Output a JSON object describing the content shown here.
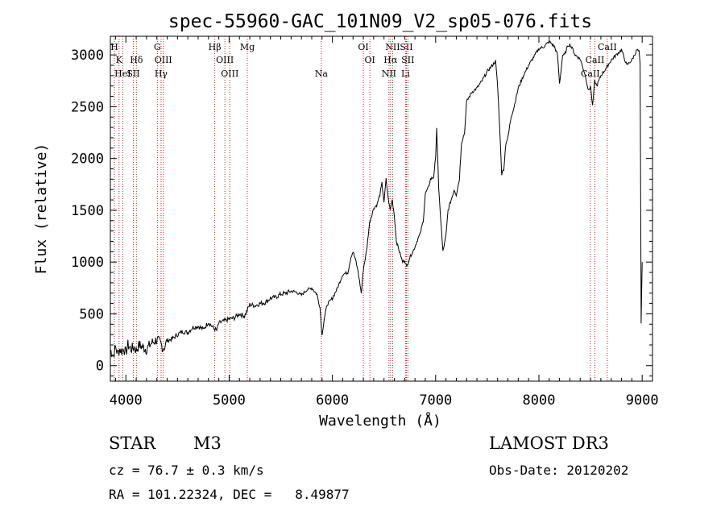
{
  "chart_data": {
    "type": "line",
    "title": "spec-55960-GAC_101N09_V2_sp05-076.fits",
    "xlabel": "Wavelength (Å)",
    "ylabel": "Flux (relative)",
    "xlim": [
      3850,
      9100
    ],
    "ylim": [
      -150,
      3180
    ],
    "x_ticks": [
      4000,
      5000,
      6000,
      7000,
      8000,
      9000
    ],
    "y_ticks": [
      0,
      500,
      1000,
      1500,
      2000,
      2500,
      3000
    ],
    "grid": false,
    "series": [
      {
        "name": "flux",
        "x": [
          3850,
          3880,
          3900,
          3920,
          3940,
          3960,
          3980,
          4000,
          4020,
          4050,
          4080,
          4100,
          4130,
          4160,
          4200,
          4250,
          4300,
          4340,
          4360,
          4380,
          4400,
          4450,
          4500,
          4550,
          4600,
          4650,
          4700,
          4750,
          4800,
          4850,
          4880,
          4900,
          4950,
          5000,
          5050,
          5100,
          5150,
          5200,
          5250,
          5300,
          5350,
          5400,
          5450,
          5500,
          5550,
          5600,
          5650,
          5700,
          5750,
          5800,
          5850,
          5880,
          5900,
          5920,
          5950,
          6000,
          6050,
          6100,
          6150,
          6180,
          6200,
          6230,
          6250,
          6280,
          6300,
          6330,
          6360,
          6400,
          6430,
          6460,
          6480,
          6500,
          6520,
          6540,
          6560,
          6580,
          6600,
          6620,
          6650,
          6680,
          6700,
          6720,
          6750,
          6780,
          6800,
          6830,
          6850,
          6880,
          6900,
          6930,
          6950,
          6980,
          7000,
          7010,
          7030,
          7050,
          7070,
          7100,
          7120,
          7150,
          7180,
          7200,
          7230,
          7250,
          7280,
          7300,
          7350,
          7400,
          7450,
          7500,
          7550,
          7580,
          7600,
          7620,
          7640,
          7660,
          7680,
          7700,
          7730,
          7760,
          7800,
          7850,
          7900,
          7950,
          8000,
          8050,
          8100,
          8150,
          8180,
          8200,
          8230,
          8250,
          8280,
          8300,
          8330,
          8350,
          8400,
          8450,
          8480,
          8500,
          8520,
          8540,
          8560,
          8600,
          8650,
          8700,
          8750,
          8800,
          8850,
          8900,
          8950,
          8970,
          8980,
          8990,
          9000
        ],
        "y": [
          150,
          100,
          180,
          120,
          160,
          140,
          170,
          120,
          200,
          160,
          180,
          150,
          200,
          180,
          160,
          220,
          250,
          210,
          170,
          190,
          240,
          260,
          300,
          330,
          320,
          370,
          380,
          350,
          420,
          360,
          340,
          410,
          430,
          450,
          460,
          500,
          480,
          590,
          580,
          600,
          610,
          650,
          660,
          690,
          700,
          720,
          710,
          680,
          730,
          750,
          690,
          560,
          290,
          450,
          590,
          650,
          750,
          880,
          900,
          1050,
          1100,
          1000,
          900,
          700,
          930,
          1100,
          1380,
          1520,
          1550,
          1650,
          1760,
          1580,
          1800,
          1620,
          1500,
          1600,
          1450,
          1200,
          1100,
          1000,
          1020,
          950,
          1050,
          1100,
          1150,
          1230,
          1270,
          1400,
          1660,
          1720,
          1800,
          1820,
          2000,
          2300,
          1700,
          1400,
          1100,
          1250,
          1500,
          1600,
          1700,
          1650,
          1800,
          2150,
          2250,
          2550,
          2640,
          2680,
          2750,
          2840,
          2900,
          2940,
          2700,
          2300,
          1850,
          1900,
          2150,
          2200,
          2400,
          2500,
          2680,
          2800,
          2900,
          2980,
          3060,
          3080,
          3130,
          3080,
          3000,
          2720,
          3000,
          3000,
          3090,
          3100,
          3050,
          3000,
          2960,
          2800,
          2650,
          2700,
          2500,
          2750,
          2700,
          2800,
          2870,
          2950,
          3000,
          3050,
          2900,
          2950,
          3050,
          3030,
          2900,
          400,
          1000
        ]
      }
    ],
    "line_markers": [
      {
        "label": "H",
        "wl": 3889,
        "row": 1
      },
      {
        "label": "K",
        "wl": 3934,
        "row": 2
      },
      {
        "label": "HeI",
        "wl": 3970,
        "row": 3
      },
      {
        "label": "SII",
        "wl": 4072,
        "row": 3
      },
      {
        "label": "Hδ",
        "wl": 4102,
        "row": 2
      },
      {
        "label": "G",
        "wl": 4305,
        "row": 1
      },
      {
        "label": "OIII",
        "wl": 4363,
        "row": 2
      },
      {
        "label": "Hγ",
        "wl": 4341,
        "row": 3
      },
      {
        "label": "Hβ",
        "wl": 4861,
        "row": 1
      },
      {
        "label": "OIII",
        "wl": 4959,
        "row": 2
      },
      {
        "label": "OIII",
        "wl": 5007,
        "row": 3
      },
      {
        "label": "Mg",
        "wl": 5176,
        "row": 1
      },
      {
        "label": "Na",
        "wl": 5893,
        "row": 3
      },
      {
        "label": "OI",
        "wl": 6300,
        "row": 1
      },
      {
        "label": "OI",
        "wl": 6363,
        "row": 2
      },
      {
        "label": "NII",
        "wl": 6548,
        "row": 3
      },
      {
        "label": "NII",
        "wl": 6584,
        "row": 1
      },
      {
        "label": "Hα",
        "wl": 6563,
        "row": 2
      },
      {
        "label": "SII",
        "wl": 6717,
        "row": 1
      },
      {
        "label": "SII",
        "wl": 6731,
        "row": 2
      },
      {
        "label": "Li",
        "wl": 6708,
        "row": 3
      },
      {
        "label": "CaII",
        "wl": 8498,
        "row": 3
      },
      {
        "label": "CaII",
        "wl": 8542,
        "row": 2
      },
      {
        "label": "CaII",
        "wl": 8662,
        "row": 1
      }
    ]
  },
  "info": {
    "object_type": "STAR",
    "subclass": "M3",
    "survey": "LAMOST DR3",
    "cz": "cz = 76.7 ± 0.3 km/s",
    "obs_date": "Obs-Date: 20120202",
    "coords": "RA = 101.22324, DEC =   8.49877"
  }
}
